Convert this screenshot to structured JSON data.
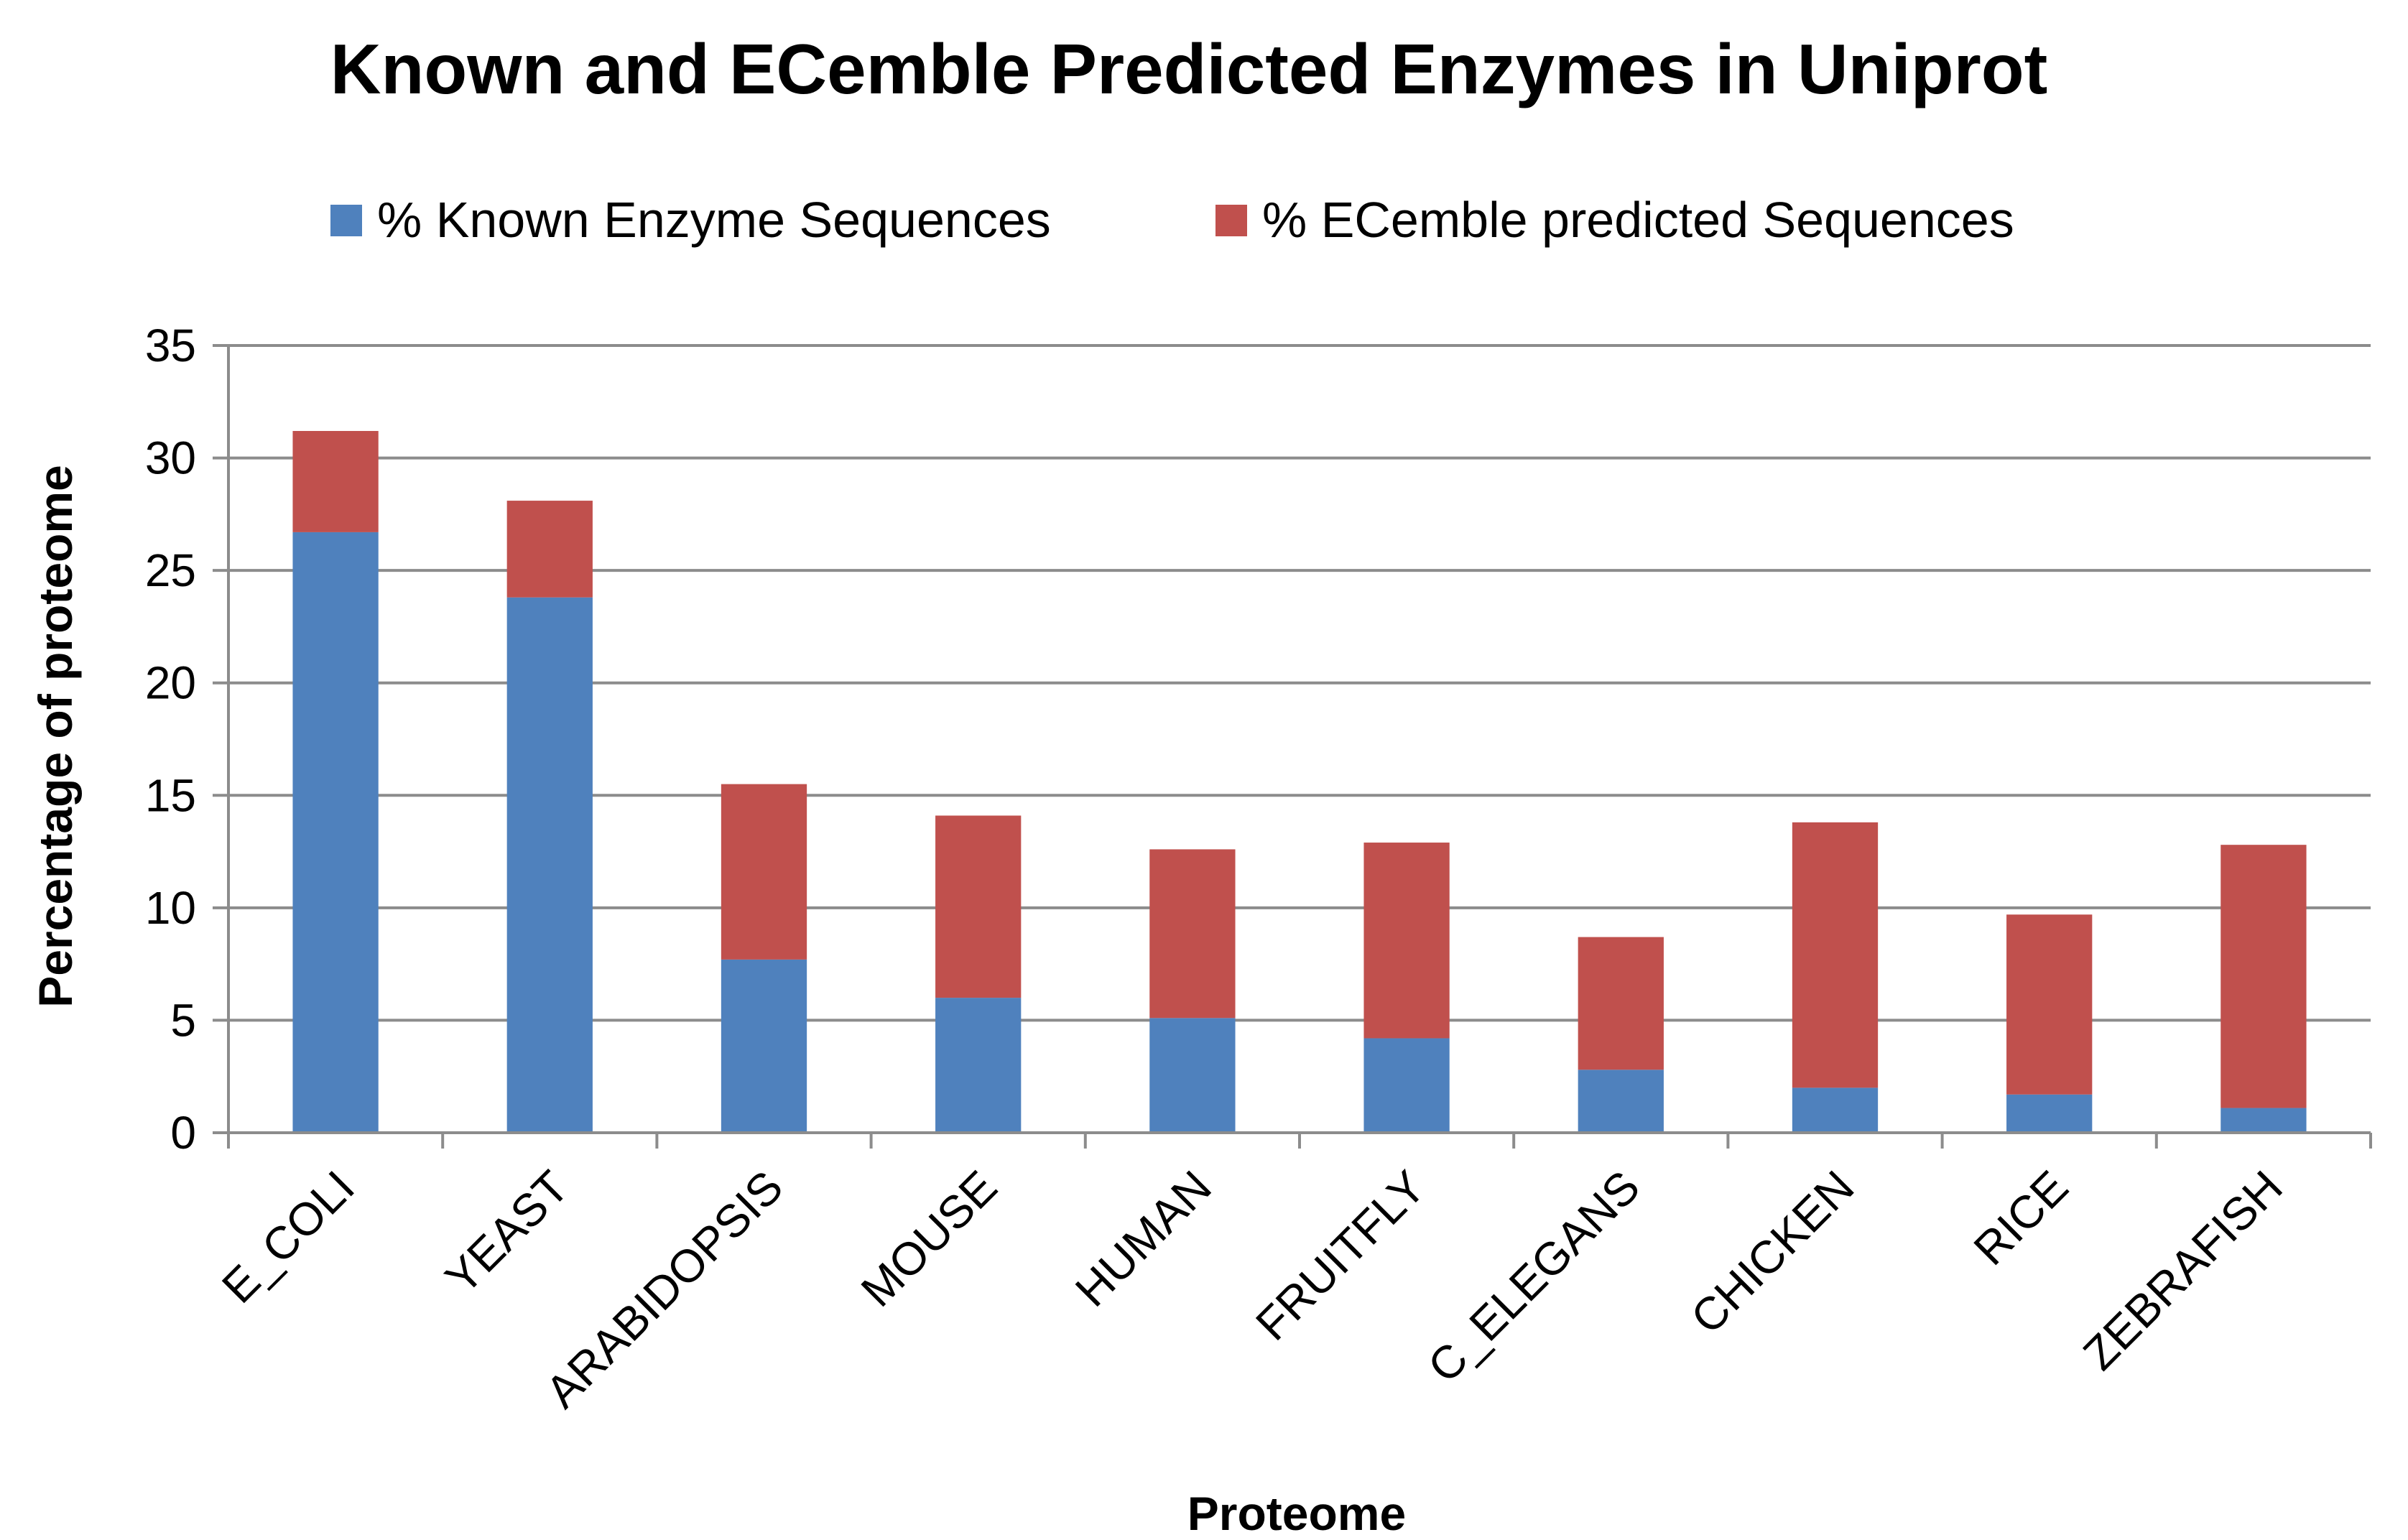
{
  "chart_data": {
    "type": "bar",
    "stacked": true,
    "title": "Known and ECemble Predicted Enzymes in Uniprot",
    "xlabel": "Proteome",
    "ylabel": "Percentage of proteome",
    "ylim": [
      0,
      35
    ],
    "yticks": [
      "0",
      "5",
      "10",
      "15",
      "20",
      "25",
      "30",
      "35"
    ],
    "grid": true,
    "legend": "top",
    "categories": [
      "E_COLI",
      "YEAST",
      "ARABIDOPSIS",
      "MOUSE",
      "HUMAN",
      "FRUITFLY",
      "C_ELEGANS",
      "CHICKEN",
      "RICE",
      "ZEBRAFISH"
    ],
    "series": [
      {
        "name": "% Known Enzyme Sequences",
        "color": "#4F81BD",
        "values": [
          26.7,
          23.8,
          7.7,
          6.0,
          5.1,
          4.2,
          2.8,
          2.0,
          1.7,
          1.1
        ]
      },
      {
        "name": "% ECemble predicted Sequences",
        "color": "#C0504D",
        "values": [
          4.5,
          4.3,
          7.8,
          8.1,
          7.5,
          8.7,
          5.9,
          11.8,
          8.0,
          11.7
        ]
      }
    ]
  }
}
